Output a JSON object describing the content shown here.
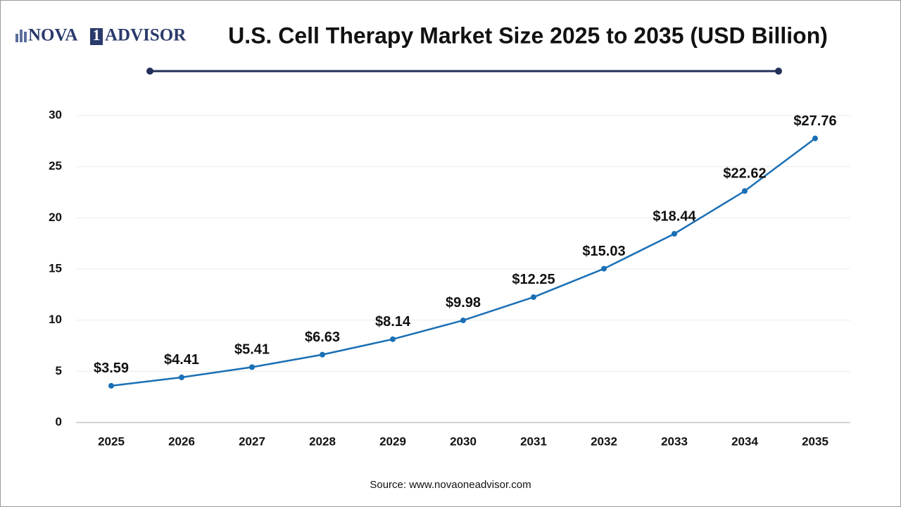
{
  "logo": {
    "left": "NOVA",
    "mid": "1",
    "right": "ADVISOR"
  },
  "chart_data": {
    "type": "line",
    "title": "U.S. Cell Therapy Market Size 2025 to 2035 (USD Billion)",
    "categories": [
      "2025",
      "2026",
      "2027",
      "2028",
      "2029",
      "2030",
      "2031",
      "2032",
      "2033",
      "2034",
      "2035"
    ],
    "series": [
      {
        "name": "U.S. Cell Therapy Market Size",
        "color": "#1a6fb5",
        "values": [
          3.59,
          4.41,
          5.41,
          6.63,
          8.14,
          9.98,
          12.25,
          15.03,
          18.44,
          22.62,
          27.76
        ],
        "value_labels": [
          "$3.59",
          "$4.41",
          "$5.41",
          "$6.63",
          "$8.14",
          "$9.98",
          "$12.25",
          "$15.03",
          "$18.44",
          "$22.62",
          "$27.76"
        ]
      }
    ],
    "ylim": [
      0,
      30
    ],
    "yticks": [
      0,
      5,
      10,
      15,
      20,
      25,
      30
    ],
    "grid": true,
    "source": "Source: www.novaoneadvisor.com"
  }
}
